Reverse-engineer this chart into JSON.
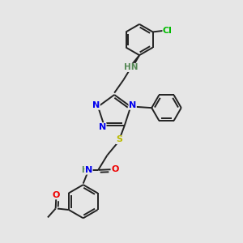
{
  "bg_color": "#e6e6e6",
  "atom_colors": {
    "N": "#0000ee",
    "O": "#ee0000",
    "S": "#bbbb00",
    "Cl": "#00bb00",
    "C": "#222222",
    "H": "#558855"
  },
  "bond_color": "#222222",
  "bond_width": 1.4,
  "xlim": [
    0,
    10
  ],
  "ylim": [
    0,
    10
  ]
}
